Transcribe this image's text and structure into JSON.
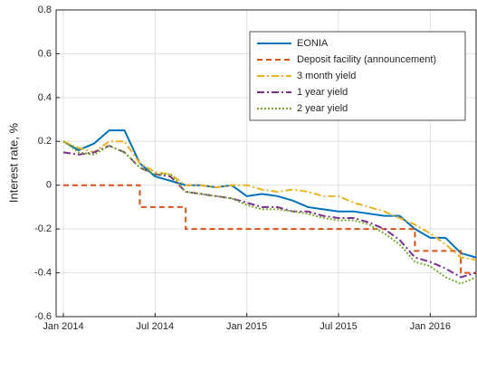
{
  "chart_data": {
    "type": "line",
    "y_label": "Interest rate, %",
    "x": [
      "2014-01",
      "2014-02",
      "2014-03",
      "2014-04",
      "2014-05",
      "2014-06",
      "2014-07",
      "2014-08",
      "2014-09",
      "2014-10",
      "2014-11",
      "2014-12",
      "2015-01",
      "2015-02",
      "2015-03",
      "2015-04",
      "2015-05",
      "2015-06",
      "2015-07",
      "2015-08",
      "2015-09",
      "2015-10",
      "2015-11",
      "2015-12",
      "2016-01",
      "2016-02",
      "2016-03",
      "2016-04"
    ],
    "xlim": [
      "2014-01",
      "2016-04"
    ],
    "xticks": [
      {
        "value": "2014-01",
        "label": "Jan 2014"
      },
      {
        "value": "2014-07",
        "label": "Jul 2014"
      },
      {
        "value": "2015-01",
        "label": "Jan 2015"
      },
      {
        "value": "2015-07",
        "label": "Jul 2015"
      },
      {
        "value": "2016-01",
        "label": "Jan 2016"
      }
    ],
    "ylim": [
      -0.6,
      0.8
    ],
    "yticks": [
      -0.6,
      -0.4,
      -0.2,
      0,
      0.2,
      0.4,
      0.6,
      0.8
    ],
    "grid": true,
    "legend": "upper right",
    "series": [
      {
        "name": "EONIA",
        "color": "#0072bd",
        "style": "solid",
        "values": [
          0.2,
          0.16,
          0.19,
          0.25,
          0.25,
          0.1,
          0.04,
          0.02,
          0.0,
          0.0,
          -0.01,
          0.0,
          -0.05,
          -0.04,
          -0.05,
          -0.07,
          -0.1,
          -0.11,
          -0.12,
          -0.12,
          -0.13,
          -0.14,
          -0.14,
          -0.2,
          -0.24,
          -0.24,
          -0.31,
          -0.33
        ]
      },
      {
        "name": "Deposit facility (announcement)",
        "color": "#d95319",
        "style": "dashed",
        "step": true,
        "values": [
          0,
          0,
          0,
          0,
          0,
          -0.1,
          -0.1,
          -0.1,
          -0.2,
          -0.2,
          -0.2,
          -0.2,
          -0.2,
          -0.2,
          -0.2,
          -0.2,
          -0.2,
          -0.2,
          -0.2,
          -0.2,
          -0.2,
          -0.2,
          -0.2,
          -0.3,
          -0.3,
          -0.3,
          -0.4,
          -0.4
        ]
      },
      {
        "name": "3 month yield",
        "color": "#edb120",
        "style": "dashdot",
        "values": [
          0.2,
          0.17,
          0.15,
          0.2,
          0.2,
          0.1,
          0.06,
          0.05,
          0.0,
          0.0,
          -0.01,
          0.0,
          0.0,
          -0.02,
          -0.03,
          -0.02,
          -0.03,
          -0.05,
          -0.05,
          -0.08,
          -0.1,
          -0.12,
          -0.15,
          -0.18,
          -0.22,
          -0.27,
          -0.33,
          -0.34
        ]
      },
      {
        "name": "1 year yield",
        "color": "#7e2f8e",
        "style": "dashdot",
        "values": [
          0.15,
          0.14,
          0.15,
          0.18,
          0.15,
          0.08,
          0.05,
          0.04,
          -0.03,
          -0.04,
          -0.05,
          -0.06,
          -0.08,
          -0.1,
          -0.1,
          -0.12,
          -0.12,
          -0.14,
          -0.15,
          -0.15,
          -0.17,
          -0.2,
          -0.25,
          -0.33,
          -0.35,
          -0.38,
          -0.42,
          -0.4
        ]
      },
      {
        "name": "2 year yield",
        "color": "#77ac30",
        "style": "dotted",
        "values": [
          0.2,
          0.15,
          0.14,
          0.18,
          0.15,
          0.08,
          0.05,
          0.05,
          -0.03,
          -0.04,
          -0.05,
          -0.06,
          -0.09,
          -0.11,
          -0.11,
          -0.12,
          -0.13,
          -0.15,
          -0.16,
          -0.16,
          -0.18,
          -0.22,
          -0.27,
          -0.35,
          -0.37,
          -0.42,
          -0.45,
          -0.42
        ]
      }
    ]
  }
}
